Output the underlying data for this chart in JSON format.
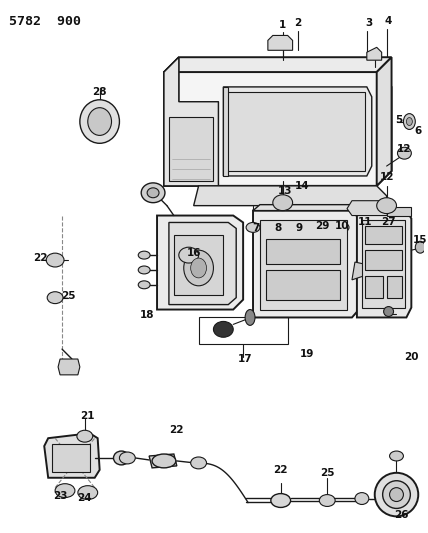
{
  "title": "5782  900",
  "bg_color": "#ffffff",
  "line_color": "#1a1a1a",
  "text_color": "#111111",
  "fig_width": 4.28,
  "fig_height": 5.33,
  "dpi": 100,
  "lw_main": 1.4,
  "lw_thin": 0.8,
  "lw_med": 1.0,
  "label_fontsize": 7.5,
  "title_fontsize": 9.5
}
